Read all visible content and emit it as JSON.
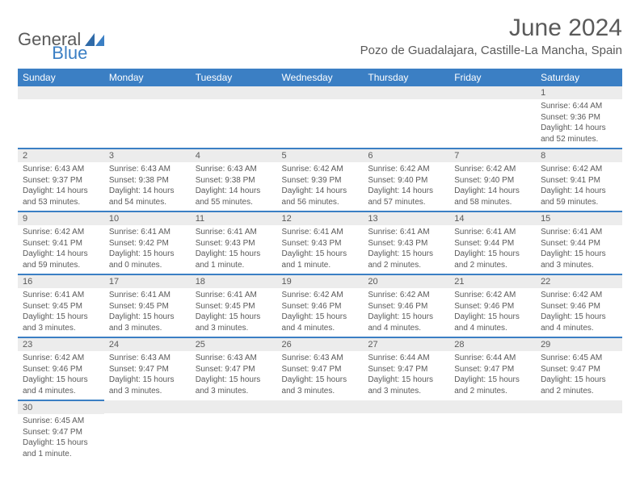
{
  "brand": {
    "part1": "General",
    "part2": "Blue"
  },
  "title": "June 2024",
  "location": "Pozo de Guadalajara, Castille-La Mancha, Spain",
  "colors": {
    "header_bg": "#3b7fc4",
    "header_fg": "#ffffff",
    "daynum_bg": "#ececec",
    "text": "#5a5a5a",
    "border": "#3b7fc4",
    "bg": "#ffffff"
  },
  "day_headers": [
    "Sunday",
    "Monday",
    "Tuesday",
    "Wednesday",
    "Thursday",
    "Friday",
    "Saturday"
  ],
  "weeks": [
    [
      null,
      null,
      null,
      null,
      null,
      null,
      {
        "n": "1",
        "sr": "6:44 AM",
        "ss": "9:36 PM",
        "dl": "14 hours and 52 minutes."
      }
    ],
    [
      {
        "n": "2",
        "sr": "6:43 AM",
        "ss": "9:37 PM",
        "dl": "14 hours and 53 minutes."
      },
      {
        "n": "3",
        "sr": "6:43 AM",
        "ss": "9:38 PM",
        "dl": "14 hours and 54 minutes."
      },
      {
        "n": "4",
        "sr": "6:43 AM",
        "ss": "9:38 PM",
        "dl": "14 hours and 55 minutes."
      },
      {
        "n": "5",
        "sr": "6:42 AM",
        "ss": "9:39 PM",
        "dl": "14 hours and 56 minutes."
      },
      {
        "n": "6",
        "sr": "6:42 AM",
        "ss": "9:40 PM",
        "dl": "14 hours and 57 minutes."
      },
      {
        "n": "7",
        "sr": "6:42 AM",
        "ss": "9:40 PM",
        "dl": "14 hours and 58 minutes."
      },
      {
        "n": "8",
        "sr": "6:42 AM",
        "ss": "9:41 PM",
        "dl": "14 hours and 59 minutes."
      }
    ],
    [
      {
        "n": "9",
        "sr": "6:42 AM",
        "ss": "9:41 PM",
        "dl": "14 hours and 59 minutes."
      },
      {
        "n": "10",
        "sr": "6:41 AM",
        "ss": "9:42 PM",
        "dl": "15 hours and 0 minutes."
      },
      {
        "n": "11",
        "sr": "6:41 AM",
        "ss": "9:43 PM",
        "dl": "15 hours and 1 minute."
      },
      {
        "n": "12",
        "sr": "6:41 AM",
        "ss": "9:43 PM",
        "dl": "15 hours and 1 minute."
      },
      {
        "n": "13",
        "sr": "6:41 AM",
        "ss": "9:43 PM",
        "dl": "15 hours and 2 minutes."
      },
      {
        "n": "14",
        "sr": "6:41 AM",
        "ss": "9:44 PM",
        "dl": "15 hours and 2 minutes."
      },
      {
        "n": "15",
        "sr": "6:41 AM",
        "ss": "9:44 PM",
        "dl": "15 hours and 3 minutes."
      }
    ],
    [
      {
        "n": "16",
        "sr": "6:41 AM",
        "ss": "9:45 PM",
        "dl": "15 hours and 3 minutes."
      },
      {
        "n": "17",
        "sr": "6:41 AM",
        "ss": "9:45 PM",
        "dl": "15 hours and 3 minutes."
      },
      {
        "n": "18",
        "sr": "6:41 AM",
        "ss": "9:45 PM",
        "dl": "15 hours and 3 minutes."
      },
      {
        "n": "19",
        "sr": "6:42 AM",
        "ss": "9:46 PM",
        "dl": "15 hours and 4 minutes."
      },
      {
        "n": "20",
        "sr": "6:42 AM",
        "ss": "9:46 PM",
        "dl": "15 hours and 4 minutes."
      },
      {
        "n": "21",
        "sr": "6:42 AM",
        "ss": "9:46 PM",
        "dl": "15 hours and 4 minutes."
      },
      {
        "n": "22",
        "sr": "6:42 AM",
        "ss": "9:46 PM",
        "dl": "15 hours and 4 minutes."
      }
    ],
    [
      {
        "n": "23",
        "sr": "6:42 AM",
        "ss": "9:46 PM",
        "dl": "15 hours and 4 minutes."
      },
      {
        "n": "24",
        "sr": "6:43 AM",
        "ss": "9:47 PM",
        "dl": "15 hours and 3 minutes."
      },
      {
        "n": "25",
        "sr": "6:43 AM",
        "ss": "9:47 PM",
        "dl": "15 hours and 3 minutes."
      },
      {
        "n": "26",
        "sr": "6:43 AM",
        "ss": "9:47 PM",
        "dl": "15 hours and 3 minutes."
      },
      {
        "n": "27",
        "sr": "6:44 AM",
        "ss": "9:47 PM",
        "dl": "15 hours and 3 minutes."
      },
      {
        "n": "28",
        "sr": "6:44 AM",
        "ss": "9:47 PM",
        "dl": "15 hours and 2 minutes."
      },
      {
        "n": "29",
        "sr": "6:45 AM",
        "ss": "9:47 PM",
        "dl": "15 hours and 2 minutes."
      }
    ],
    [
      {
        "n": "30",
        "sr": "6:45 AM",
        "ss": "9:47 PM",
        "dl": "15 hours and 1 minute."
      },
      null,
      null,
      null,
      null,
      null,
      null
    ]
  ],
  "labels": {
    "sunrise": "Sunrise: ",
    "sunset": "Sunset: ",
    "daylight": "Daylight: "
  }
}
